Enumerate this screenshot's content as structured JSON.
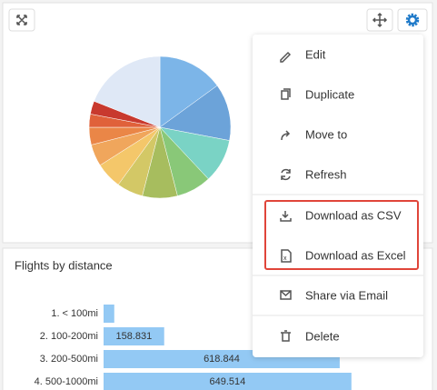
{
  "menu": {
    "items": [
      "Edit",
      "Duplicate",
      "Move to",
      "Refresh",
      "Download as CSV",
      "Download as Excel",
      "Share via Email",
      "Delete"
    ]
  },
  "chart_data": [
    {
      "type": "pie",
      "categories": [
        null,
        null,
        null,
        null,
        null,
        null,
        null,
        null,
        null,
        null,
        null,
        null
      ],
      "values": [
        15,
        13,
        10,
        8,
        8,
        6,
        6,
        5,
        4,
        3,
        3,
        19
      ],
      "colors": [
        "#7cb5e8",
        "#6ca3d9",
        "#7ad3c5",
        "#89c878",
        "#a7bd5e",
        "#d3c866",
        "#f4c76a",
        "#f0a65c",
        "#ea8647",
        "#e0613a",
        "#c8392e",
        "#dfe8f6"
      ]
    },
    {
      "type": "bar",
      "title": "Flights by distance",
      "categories": [
        "1. < 100mi",
        "2. 100-200mi",
        "3. 200-500mi",
        "4. 500-1000mi"
      ],
      "values": [
        28,
        158.831,
        618.844,
        649.514
      ],
      "color": "#93c9f4"
    }
  ]
}
